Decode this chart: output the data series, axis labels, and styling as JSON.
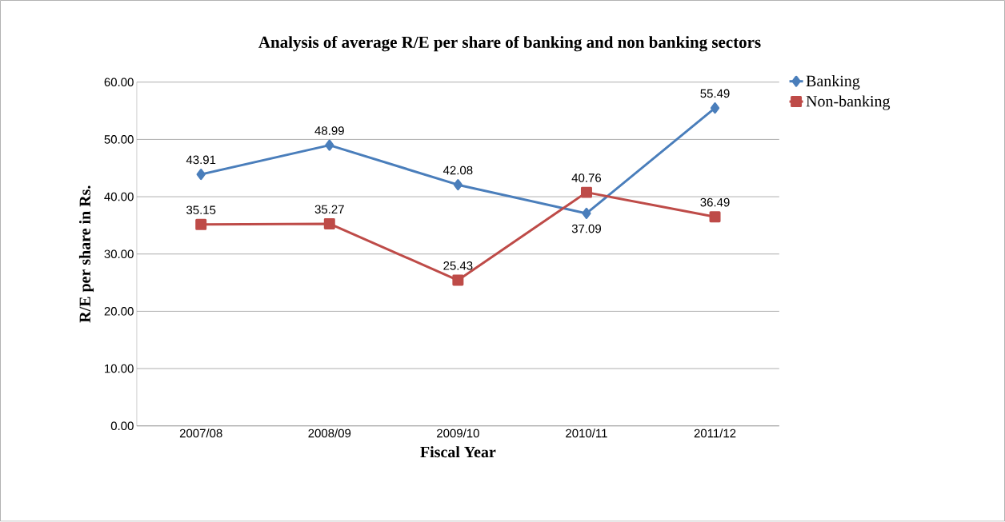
{
  "chart_data": {
    "type": "line",
    "title": "Analysis of  average R/E per share of banking and non banking sectors",
    "xlabel": "Fiscal Year",
    "ylabel": "R/E per share in Rs.",
    "categories": [
      "2007/08",
      "2008/09",
      "2009/10",
      "2010/11",
      "2011/12"
    ],
    "series": [
      {
        "name": "Banking",
        "color": "#4a7ebb",
        "marker": "diamond",
        "values": [
          43.91,
          48.99,
          42.08,
          37.09,
          55.49
        ]
      },
      {
        "name": "Non-banking",
        "color": "#be4b48",
        "marker": "square",
        "values": [
          35.15,
          35.27,
          25.43,
          40.76,
          36.49
        ]
      }
    ],
    "ylim": [
      0,
      60
    ],
    "yticks": [
      {
        "value": 0,
        "label": "0.00"
      },
      {
        "value": 10,
        "label": "10.00"
      },
      {
        "value": 20,
        "label": "20.00"
      },
      {
        "value": 30,
        "label": "30.00"
      },
      {
        "value": 40,
        "label": "40.00"
      },
      {
        "value": 50,
        "label": "50.00"
      },
      {
        "value": 60,
        "label": "60.00"
      }
    ],
    "grid": "y",
    "legend": "right",
    "data_labels": true,
    "line_style": "solid"
  }
}
